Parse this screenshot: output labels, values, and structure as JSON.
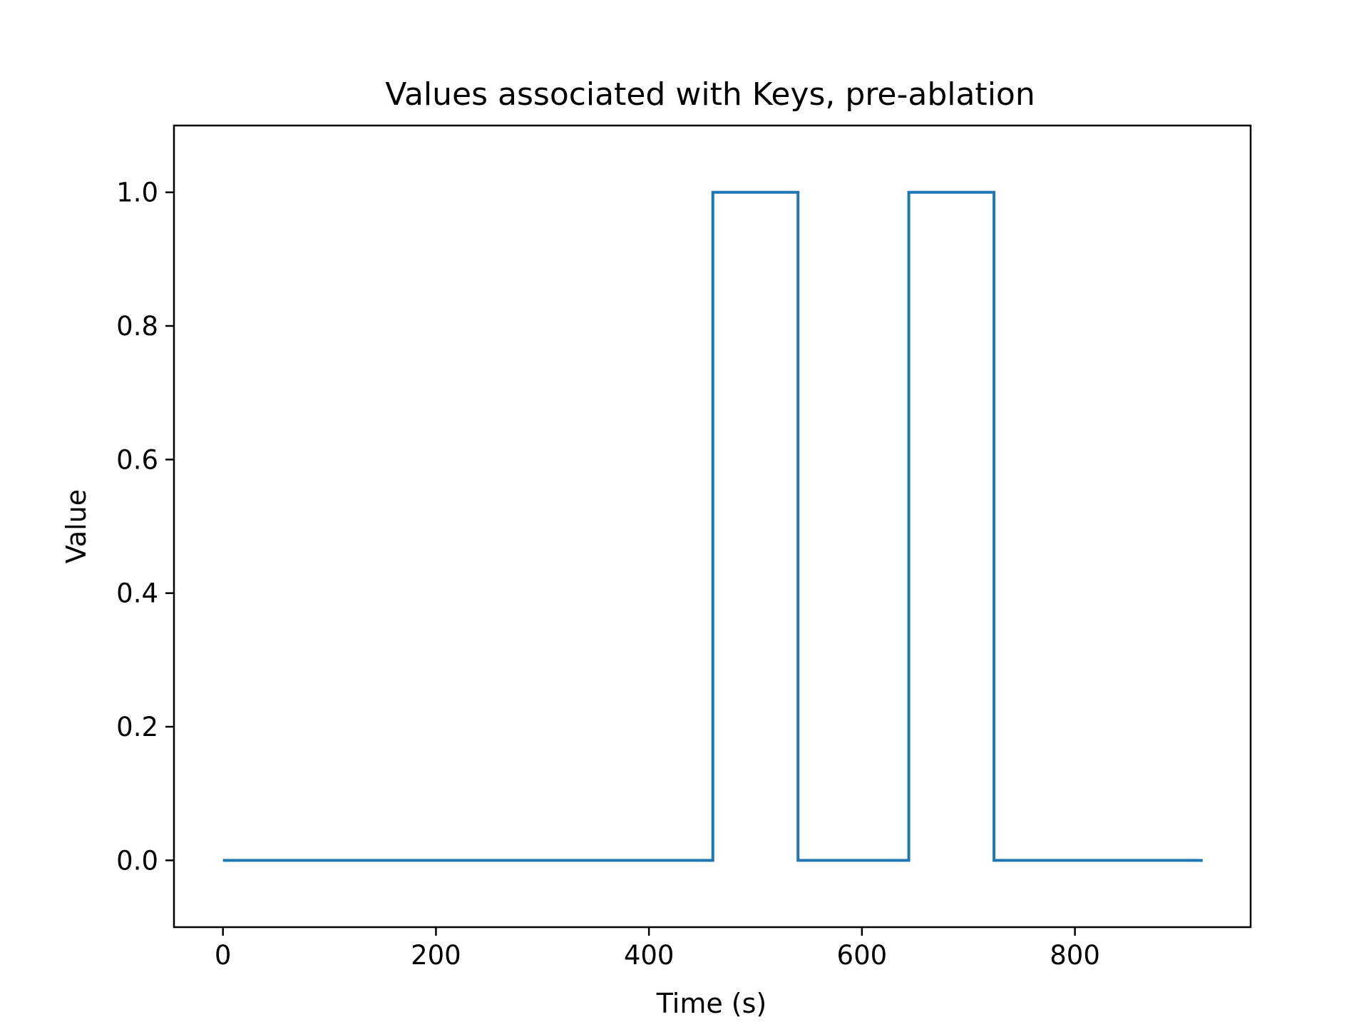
{
  "chart_data": {
    "type": "line",
    "title": "Values associated with Keys, pre-ablation",
    "xlabel": "Time (s)",
    "ylabel": "Value",
    "xlim": [
      -46,
      965
    ],
    "ylim": [
      -0.1,
      1.1
    ],
    "xticks": [
      0,
      200,
      400,
      600,
      800
    ],
    "xtick_labels": [
      "0",
      "200",
      "400",
      "600",
      "800"
    ],
    "yticks": [
      0.0,
      0.2,
      0.4,
      0.6,
      0.8,
      1.0
    ],
    "ytick_labels": [
      "0.0",
      "0.2",
      "0.4",
      "0.6",
      "0.8",
      "1.0"
    ],
    "grid": false,
    "legend": false,
    "series": [
      {
        "color": "#1f77b4",
        "x": [
          0,
          460,
          460,
          540,
          540,
          644,
          644,
          724,
          724,
          920
        ],
        "y": [
          0,
          0,
          1,
          1,
          0,
          0,
          1,
          1,
          0,
          0
        ]
      }
    ]
  }
}
